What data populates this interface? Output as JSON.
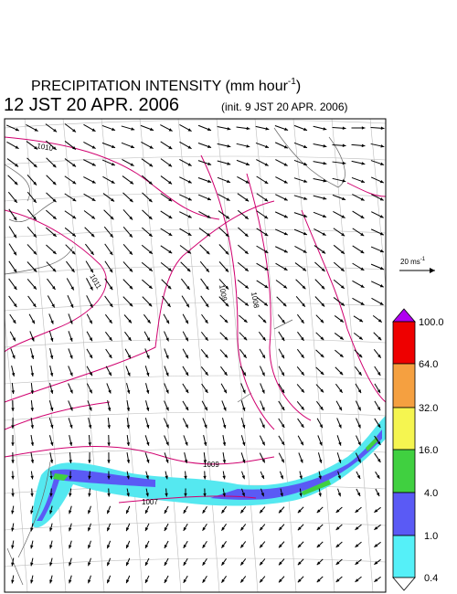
{
  "map": {
    "title": "PRECIPITATION INTENSITY (mm hour",
    "title_exponent": "-1",
    "title_close": ")",
    "valid_time": "12 JST 20 APR. 2006",
    "init_time": "(init. 9 JST 20 APR. 2006)",
    "vector_scale": {
      "label": "20 ms",
      "exponent": "-1"
    },
    "contour_labels": [
      "1010",
      "1011",
      "1009",
      "1008",
      "1009",
      "1007"
    ],
    "colorbar": {
      "labels": [
        "100.0",
        "64.0",
        "32.0",
        "16.0",
        "4.0",
        "1.0",
        "0.4"
      ]
    }
  }
}
